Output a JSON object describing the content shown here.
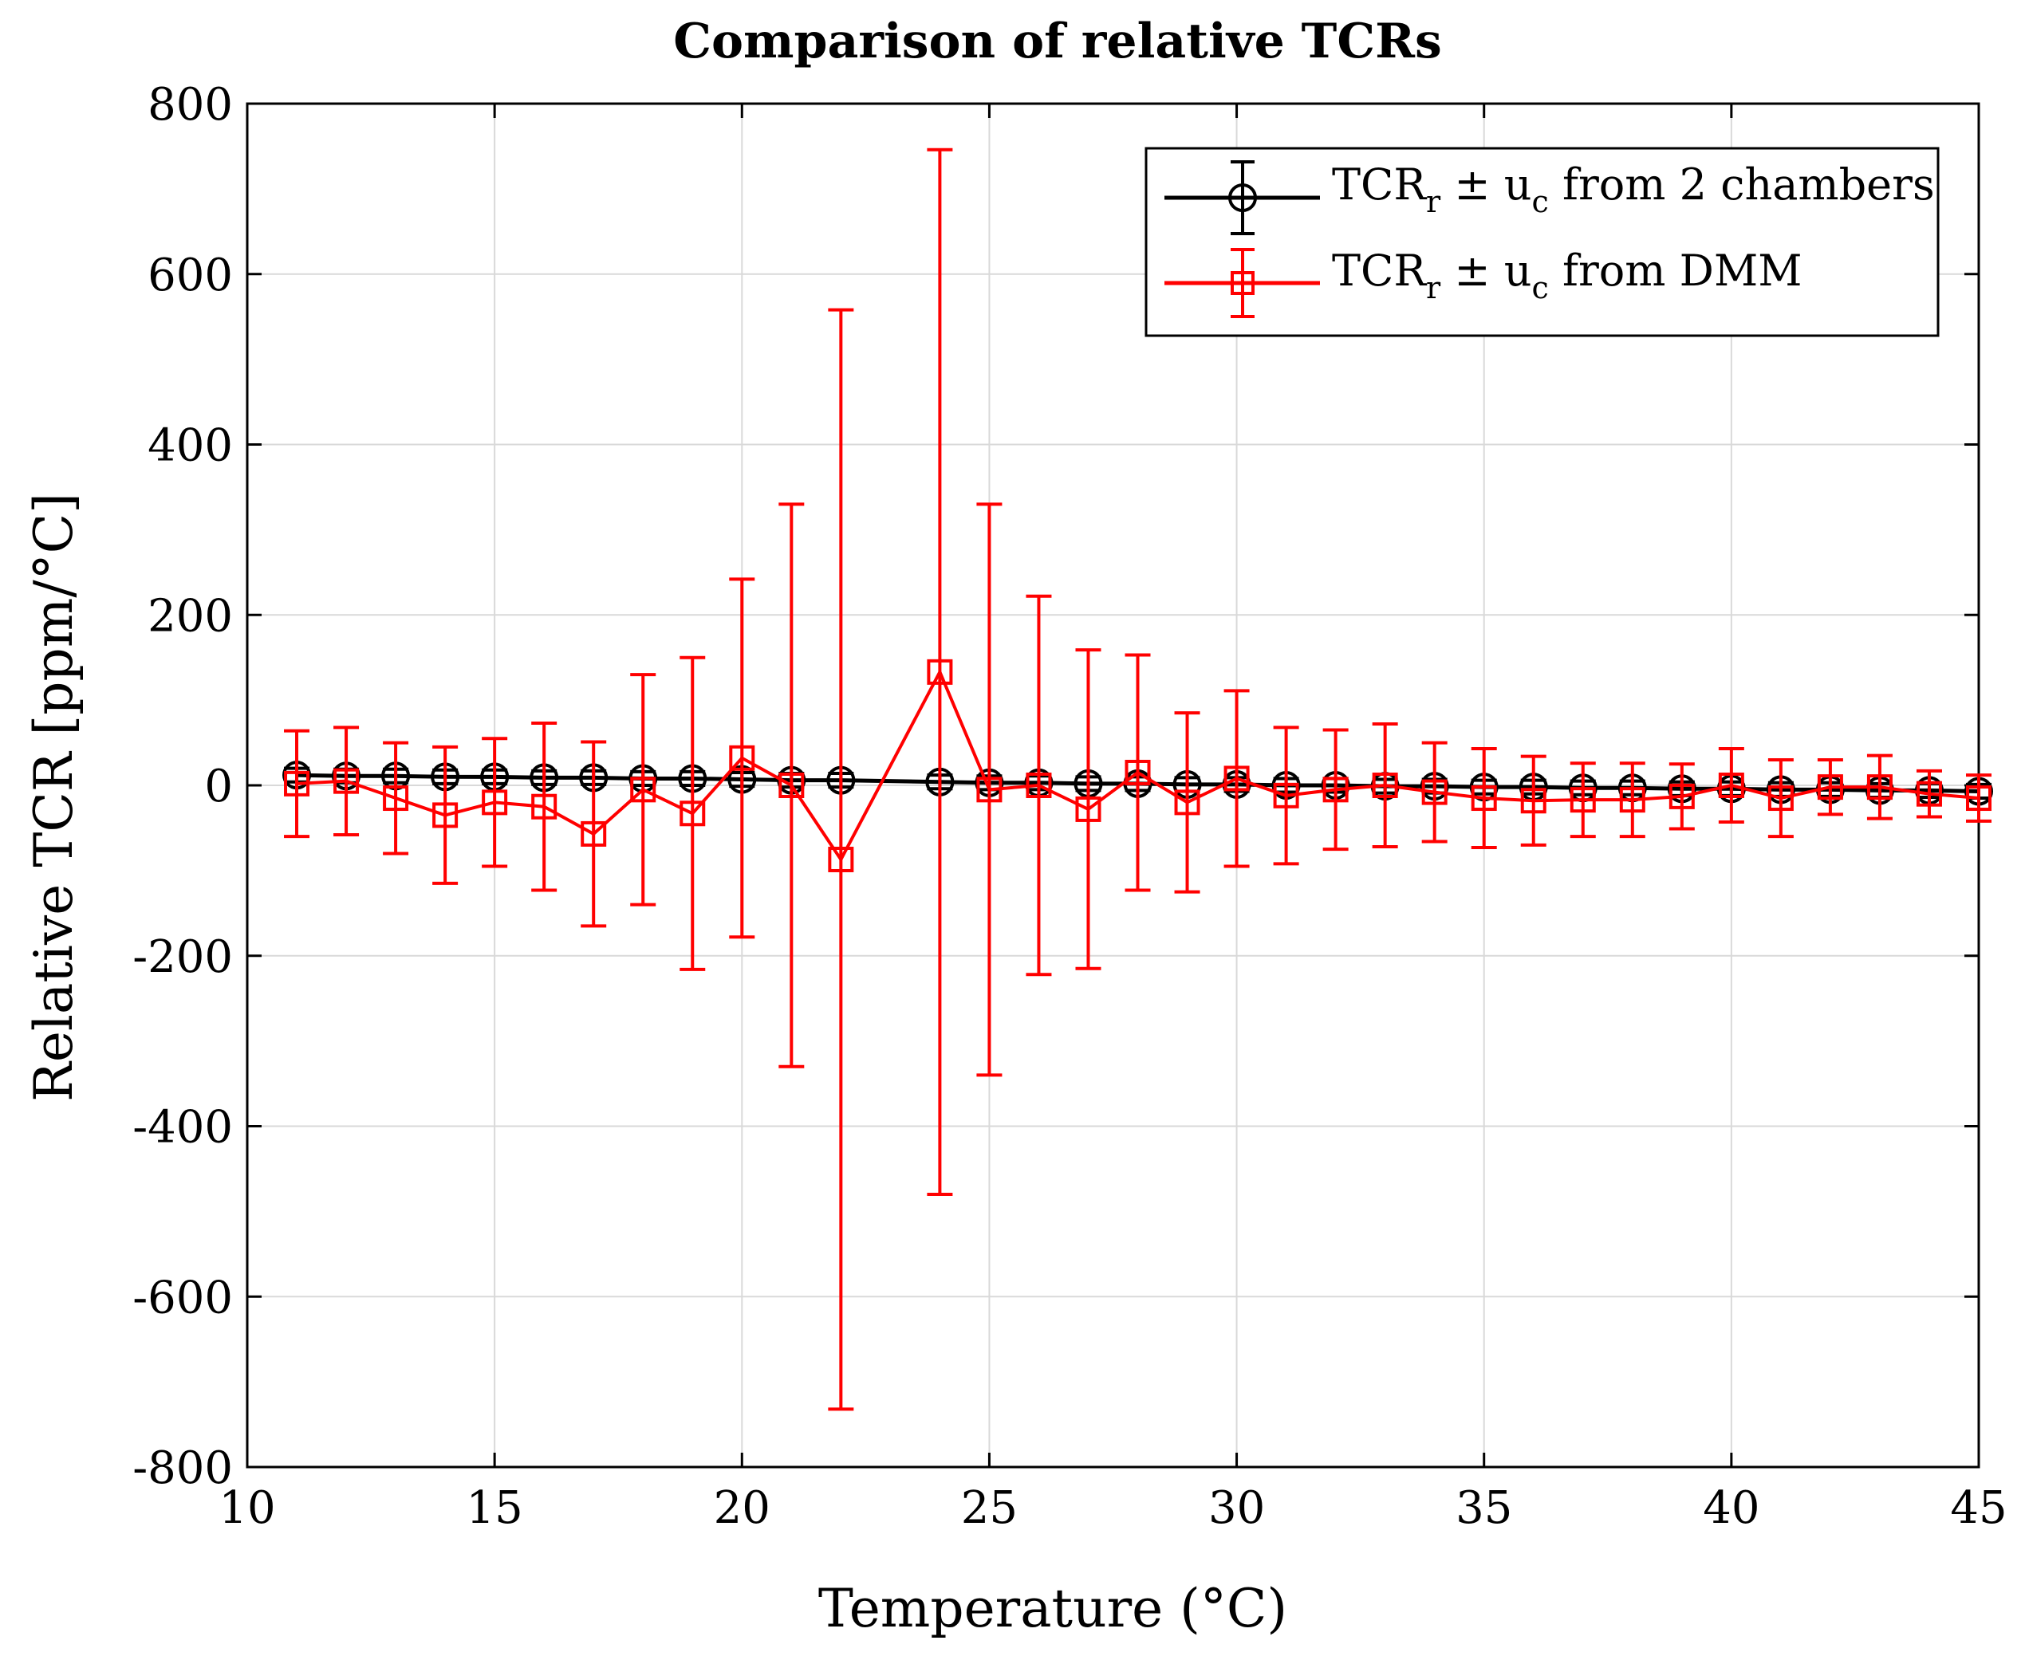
{
  "chart_data": {
    "type": "line",
    "title": "Comparison of relative TCRs",
    "xlabel": "Temperature (°C)",
    "ylabel": "Relative TCR [ppm/°C]",
    "xlim": [
      10,
      45
    ],
    "ylim": [
      -800,
      800
    ],
    "xticks": [
      10,
      15,
      20,
      25,
      30,
      35,
      40,
      45
    ],
    "yticks": [
      -800,
      -600,
      -400,
      -200,
      0,
      200,
      400,
      600,
      800
    ],
    "xtick_labels": [
      "10",
      "15",
      "20",
      "25",
      "30",
      "35",
      "40",
      "45"
    ],
    "ytick_labels": [
      "-800",
      "-600",
      "-400",
      "-200",
      "0",
      "200",
      "400",
      "600",
      "800"
    ],
    "grid": true,
    "legend_position": "top-right",
    "series": [
      {
        "name": "TCR_r ± u_c from 2 chambers",
        "legend_main": "TCR",
        "legend_sub1": "r",
        "legend_mid": " ± u",
        "legend_sub2": "c",
        "legend_tail": " from 2 chambers",
        "color": "#000000",
        "marker": "circle",
        "x": [
          11,
          12,
          13,
          14,
          15,
          16,
          17,
          18,
          19,
          20,
          21,
          22,
          24,
          25,
          26,
          27,
          28,
          29,
          30,
          31,
          32,
          33,
          34,
          35,
          36,
          37,
          38,
          39,
          40,
          41,
          42,
          43,
          44,
          45
        ],
        "y": [
          12,
          11,
          11,
          10,
          10,
          9,
          9,
          8,
          8,
          7,
          6,
          6,
          4,
          3,
          3,
          2,
          2,
          1,
          1,
          0,
          0,
          -1,
          -1,
          -2,
          -2,
          -3,
          -3,
          -4,
          -4,
          -5,
          -5,
          -6,
          -6,
          -7
        ],
        "err": [
          8,
          8,
          8,
          8,
          8,
          8,
          8,
          8,
          8,
          8,
          8,
          8,
          8,
          8,
          8,
          8,
          8,
          8,
          8,
          8,
          8,
          8,
          8,
          8,
          8,
          8,
          8,
          8,
          8,
          8,
          8,
          8,
          8,
          8
        ]
      },
      {
        "name": "TCR_r ± u_c from DMM",
        "legend_main": "TCR",
        "legend_sub1": "r",
        "legend_mid": " ± u",
        "legend_sub2": "c",
        "legend_tail": " from DMM",
        "color": "#ff0000",
        "marker": "square",
        "x": [
          11,
          12,
          13,
          14,
          15,
          16,
          17,
          18,
          19,
          20,
          21,
          22,
          24,
          25,
          26,
          27,
          28,
          29,
          30,
          31,
          32,
          33,
          34,
          35,
          36,
          37,
          38,
          39,
          40,
          41,
          42,
          43,
          44,
          45
        ],
        "y": [
          2,
          5,
          -15,
          -35,
          -20,
          -25,
          -57,
          -5,
          -33,
          32,
          0,
          -87,
          133,
          -5,
          0,
          -28,
          15,
          -20,
          8,
          -12,
          -5,
          0,
          -8,
          -15,
          -18,
          -17,
          -17,
          -13,
          0,
          -15,
          -2,
          -2,
          -10,
          -15
        ],
        "err": [
          62,
          63,
          65,
          80,
          75,
          98,
          108,
          135,
          183,
          210,
          330,
          645,
          613,
          335,
          222,
          187,
          138,
          105,
          103,
          80,
          70,
          72,
          58,
          58,
          52,
          43,
          43,
          38,
          43,
          45,
          32,
          37,
          27,
          27
        ]
      }
    ]
  }
}
